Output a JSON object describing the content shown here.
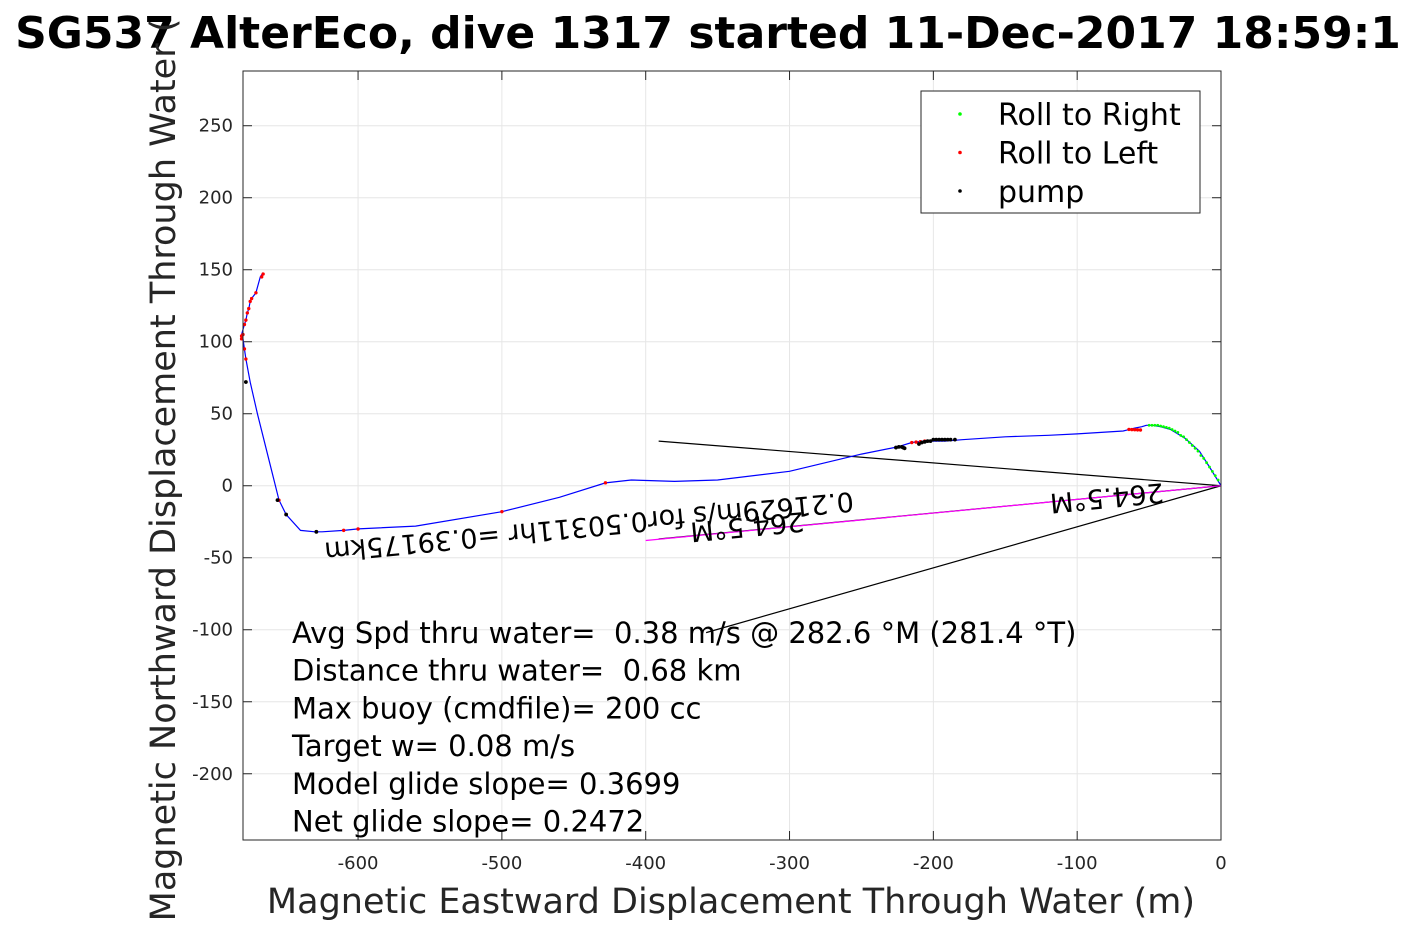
{
  "chart_data": {
    "type": "scatter",
    "title": "SG537 AlterEco, dive 1317 started 11-Dec-2017 18:59:1",
    "xlabel": "Magnetic Eastward Displacement Through Water (m)",
    "ylabel": "Magnetic Northward Displacement Through Water (",
    "xlim": [
      -680,
      0
    ],
    "ylim": [
      -246,
      288
    ],
    "xticks": [
      -600,
      -500,
      -400,
      -300,
      -200,
      -100,
      0
    ],
    "yticks": [
      -200,
      -150,
      -100,
      -50,
      0,
      50,
      100,
      150,
      200,
      250
    ],
    "grid": true,
    "legend_position": "top-right",
    "legend": [
      {
        "name": "Roll to Right",
        "color": "#00ff00"
      },
      {
        "name": "Roll to Left",
        "color": "#ff0000"
      },
      {
        "name": "pump",
        "color": "#000000"
      }
    ],
    "track": {
      "name": "track",
      "color": "#0000ff",
      "x": [
        0,
        -8,
        -15,
        -25,
        -35,
        -42,
        -48,
        -52,
        -55,
        -60,
        -64,
        -68,
        -100,
        -120,
        -150,
        -180,
        -192,
        -200,
        -207,
        -215,
        -225,
        -250,
        -300,
        -350,
        -380,
        -410,
        -428,
        -460,
        -500,
        -560,
        -600,
        -610,
        -625,
        -630,
        -640,
        -650,
        -655,
        -660,
        -670,
        -675,
        -678,
        -679,
        -680,
        -681,
        -681,
        -679,
        -678,
        -677,
        -676,
        -675,
        -674,
        -671,
        -668,
        -666
      ],
      "y": [
        0,
        13,
        24,
        33,
        39,
        41,
        42,
        42,
        41,
        40,
        39,
        38,
        36,
        35,
        34,
        32,
        31,
        31,
        31,
        30,
        27,
        22,
        10,
        4,
        3,
        4,
        2,
        -8,
        -18,
        -28,
        -30,
        -31,
        -32,
        -32,
        -31,
        -20,
        -10,
        10,
        50,
        72,
        88,
        95,
        102,
        104,
        105,
        112,
        115,
        120,
        123,
        128,
        130,
        134,
        145,
        148
      ]
    },
    "roll_right": {
      "x": [
        -2,
        -4,
        -6,
        -8,
        -10,
        -12,
        -14,
        -16,
        -18,
        -20,
        -22,
        -24,
        -26,
        -28,
        -30,
        -32,
        -34,
        -36,
        -38,
        -40,
        -42,
        -44,
        -46,
        -48,
        -50
      ],
      "y": [
        4,
        7,
        10,
        13,
        16,
        19,
        21,
        24,
        26,
        28,
        30,
        32,
        34,
        35,
        37,
        38,
        39,
        40,
        40.5,
        41,
        41.5,
        42,
        42,
        42,
        42
      ]
    },
    "roll_left": {
      "x": [
        -56,
        -58,
        -60,
        -62,
        -64,
        -666,
        -667,
        -671,
        -674,
        -675,
        -676,
        -677,
        -678,
        -679,
        -680,
        -681,
        -681,
        -679,
        -678,
        -655,
        -650,
        -629,
        -610,
        -600,
        -500,
        -428,
        -215,
        -212,
        -209,
        -206
      ],
      "y": [
        38.7,
        38.8,
        38.9,
        39,
        39.1,
        147,
        145,
        134,
        130,
        128,
        123,
        120,
        115,
        112,
        105,
        104,
        102,
        95,
        88,
        -10,
        -20,
        -32,
        -31,
        -30,
        -18,
        2,
        30,
        30.3,
        30.6,
        31
      ]
    },
    "pump": {
      "x": [
        -220,
        -221,
        -222,
        -224,
        -226,
        -210,
        -208,
        -206,
        -204,
        -202,
        -200,
        -198,
        -196,
        -194,
        -192,
        -190,
        -188,
        -185,
        -678,
        -656,
        -650,
        -629
      ],
      "y": [
        26,
        26.5,
        27,
        27,
        26.5,
        29,
        30,
        30.5,
        31,
        31,
        32,
        32,
        32,
        32,
        32,
        32,
        32,
        32,
        72,
        -10,
        -20,
        -32
      ]
    },
    "current_track": {
      "color": "#ff00ff",
      "x": [
        0,
        -400
      ],
      "y": [
        0,
        -38
      ]
    },
    "vectors": [
      {
        "x": [
          0,
          -391
        ],
        "y": [
          0,
          31
        ]
      },
      {
        "x": [
          0,
          -358
        ],
        "y": [
          0,
          -102
        ]
      },
      {
        "x": [
          0,
          -391
        ],
        "y": [
          0,
          -37
        ]
      }
    ],
    "vector_labels": [
      {
        "text": "0.21629m/s for0.50311hr =0.39175km",
        "x": -440,
        "y": -22,
        "angle": 174.5
      },
      {
        "text": "264.5°M",
        "x": -80,
        "y": -2,
        "angle": 174.5
      },
      {
        "text": "264.5°M",
        "x": -330,
        "y": -22,
        "angle": 174.5
      }
    ],
    "annotations": [
      "Avg Spd thru water=  0.38 m/s @ 282.6 °M (281.4 °T)",
      "Distance thru water=  0.68 km",
      "Max buoy (cmdfile)= 200 cc",
      "Target w= 0.08 m/s",
      "Model glide slope= 0.3699",
      "Net glide slope= 0.2472"
    ]
  }
}
